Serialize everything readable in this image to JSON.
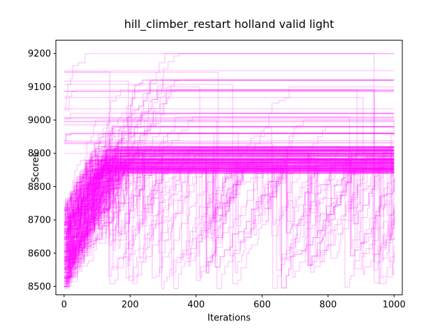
{
  "chart_data": {
    "type": "line",
    "title": "hill_climber_restart holland valid light",
    "xlabel": "Iterations",
    "ylabel": "Scores",
    "xlim": [
      -25,
      1025
    ],
    "ylim": [
      8475,
      9240
    ],
    "x_ticks": [
      0,
      200,
      400,
      600,
      800,
      1000
    ],
    "y_ticks": [
      8500,
      8600,
      8700,
      8800,
      8900,
      9000,
      9100,
      9200
    ],
    "series_color": "#ff00ff",
    "series_alpha": 0.2,
    "grid": false,
    "legend": "none",
    "series_summary": {
      "description": "Many overlapping restart runs; each starts low and climbs to a plateau",
      "iterations": [
        0,
        1000
      ],
      "start_scores_range": [
        8490,
        9160
      ],
      "plateau_levels": [
        8850,
        8880,
        8900,
        8920,
        8960,
        8980,
        9000,
        9010,
        9020,
        9090,
        9100,
        9120,
        9200
      ],
      "dip_floor": 8490
    }
  }
}
